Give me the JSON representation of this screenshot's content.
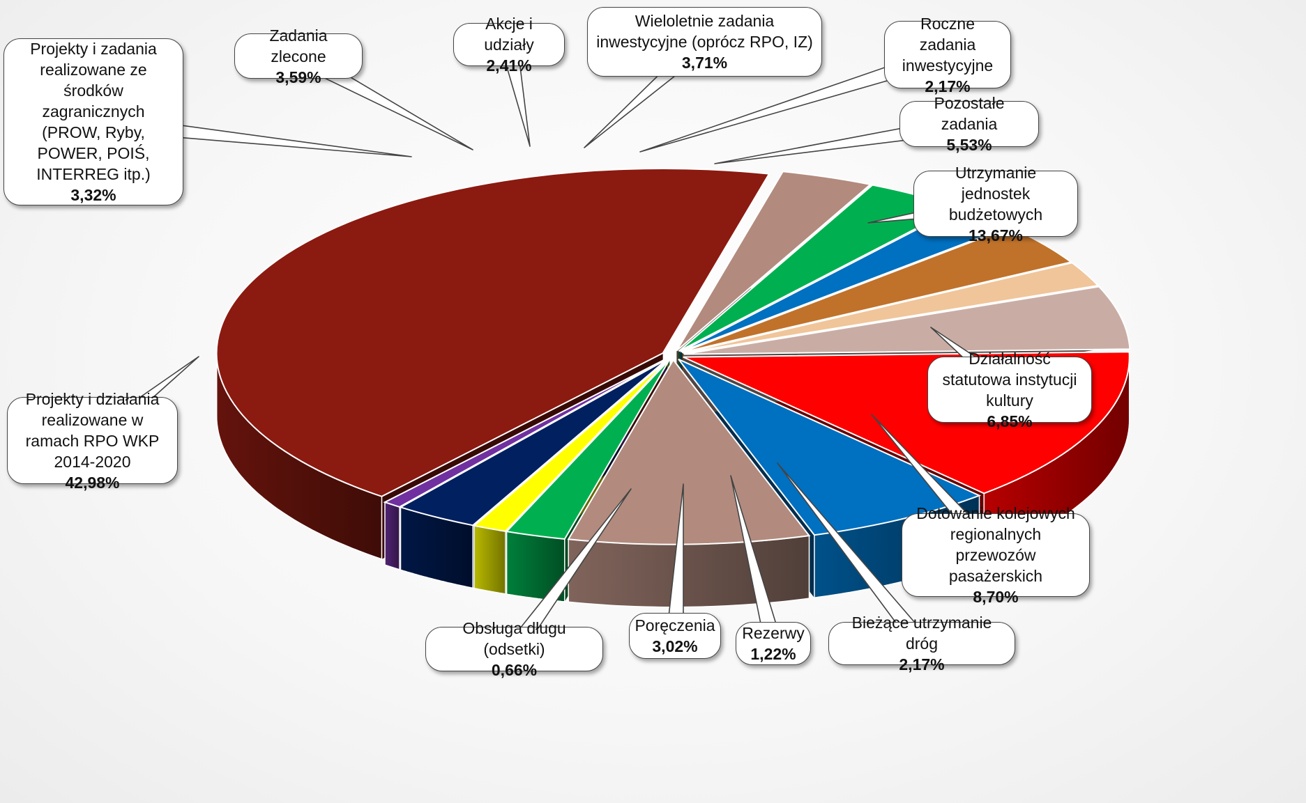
{
  "chart_data": {
    "type": "pie",
    "title": "",
    "slices": [
      {
        "label": "Utrzymanie jednostek budżetowych",
        "value": 13.67,
        "value_label": "13,67%",
        "color": "#fe0000"
      },
      {
        "label": "Działalność statutowa instytucji kultury",
        "value": 6.85,
        "value_label": "6,85%",
        "color": "#0070c0"
      },
      {
        "label": "Dotowanie kolejowych regionalnych przewozów pasażerskich",
        "value": 8.7,
        "value_label": "8,70%",
        "color": "#b28b7e"
      },
      {
        "label": "Bieżące utrzymanie dróg",
        "value": 2.17,
        "value_label": "2,17%",
        "color": "#00b050"
      },
      {
        "label": "Rezerwy",
        "value": 1.22,
        "value_label": "1,22%",
        "color": "#ffff00"
      },
      {
        "label": "Poręczenia",
        "value": 3.02,
        "value_label": "3,02%",
        "color": "#002060"
      },
      {
        "label": "Obsługa długu (odsetki)",
        "value": 0.66,
        "value_label": "0,66%",
        "color": "#7030a0"
      },
      {
        "label": "Projekty i działania realizowane w ramach RPO WKP 2014-2020",
        "value": 42.98,
        "value_label": "42,98%",
        "color": "#8b1a10"
      },
      {
        "label": "Projekty i zadania realizowane ze środków zagranicznych (PROW, Ryby, POWER, POIŚ, INTERREG itp.)",
        "value": 3.32,
        "value_label": "3,32%",
        "color": "#b28b7e"
      },
      {
        "label": "Zadania zlecone",
        "value": 3.59,
        "value_label": "3,59%",
        "color": "#00b050"
      },
      {
        "label": "Akcje i udziały",
        "value": 2.41,
        "value_label": "2,41%",
        "color": "#0070c0"
      },
      {
        "label": "Wieloletnie zadania inwestycyjne (oprócz RPO, IZ)",
        "value": 3.71,
        "value_label": "3,71%",
        "color": "#c0722a"
      },
      {
        "label": "Roczne zadania inwestycyjne",
        "value": 2.17,
        "value_label": "2,17%",
        "color": "#f0c59a"
      },
      {
        "label": "Pozostałe zadania",
        "value": 5.53,
        "value_label": "5,53%",
        "color": "#c9ada5"
      }
    ],
    "legend": "none",
    "style": "3d-exploded-pie-with-callouts"
  }
}
